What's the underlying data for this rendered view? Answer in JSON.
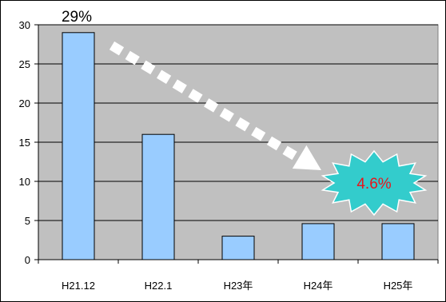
{
  "chart_data": {
    "type": "bar",
    "categories": [
      "H21.12",
      "H22.1",
      "H23年",
      "H24年",
      "H25年"
    ],
    "values": [
      29,
      16,
      3,
      4.6,
      4.6
    ],
    "ylim": [
      0,
      30
    ],
    "yticks": [
      0,
      5,
      10,
      15,
      20,
      25,
      30
    ],
    "ytick_labels": [
      "0",
      "5",
      "10",
      "15",
      "20",
      "25",
      "30"
    ],
    "grid": true,
    "title": "",
    "xlabel": "",
    "ylabel": "",
    "annotations": {
      "first_value_label": "29%",
      "last_value_burst": "4.6%"
    },
    "colors": {
      "plot_background": "#c0c0c0",
      "bar_fill": "#99ccff",
      "bar_stroke": "#000000",
      "arrow": "#ffffff",
      "burst_fill": "#33cccc",
      "burst_text": "#e8141c"
    }
  }
}
